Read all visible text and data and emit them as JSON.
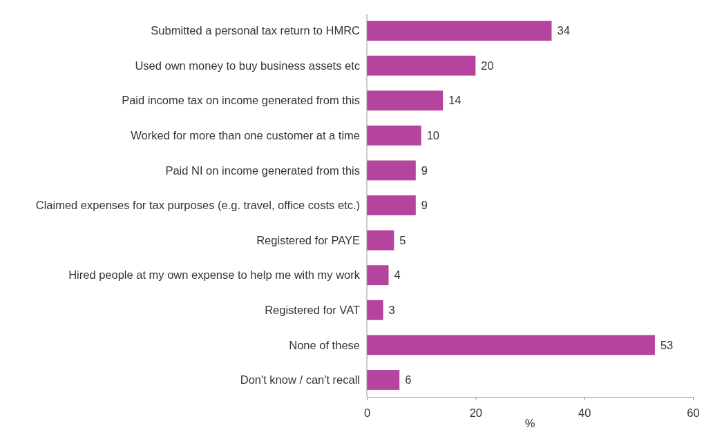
{
  "chart_data": {
    "type": "bar",
    "orientation": "horizontal",
    "xlabel": "%",
    "categories": [
      "Submitted a personal tax return to HMRC",
      "Used own money to buy business assets etc",
      "Paid income tax on income generated from this",
      "Worked for more than one customer at a time",
      "Paid NI on income generated from this",
      "Claimed expenses for tax purposes (e.g. travel, office costs etc.)",
      "Registered for PAYE",
      "Hired people at my own expense to help me with my work",
      "Registered for VAT",
      "None of these",
      "Don't know / can't recall"
    ],
    "values": [
      34,
      20,
      14,
      10,
      9,
      9,
      5,
      4,
      3,
      53,
      6
    ],
    "color": "#b5449e",
    "xlim": [
      0,
      60
    ],
    "xticks": [
      0,
      20,
      40,
      60
    ],
    "data_labels": true,
    "grid": false
  }
}
